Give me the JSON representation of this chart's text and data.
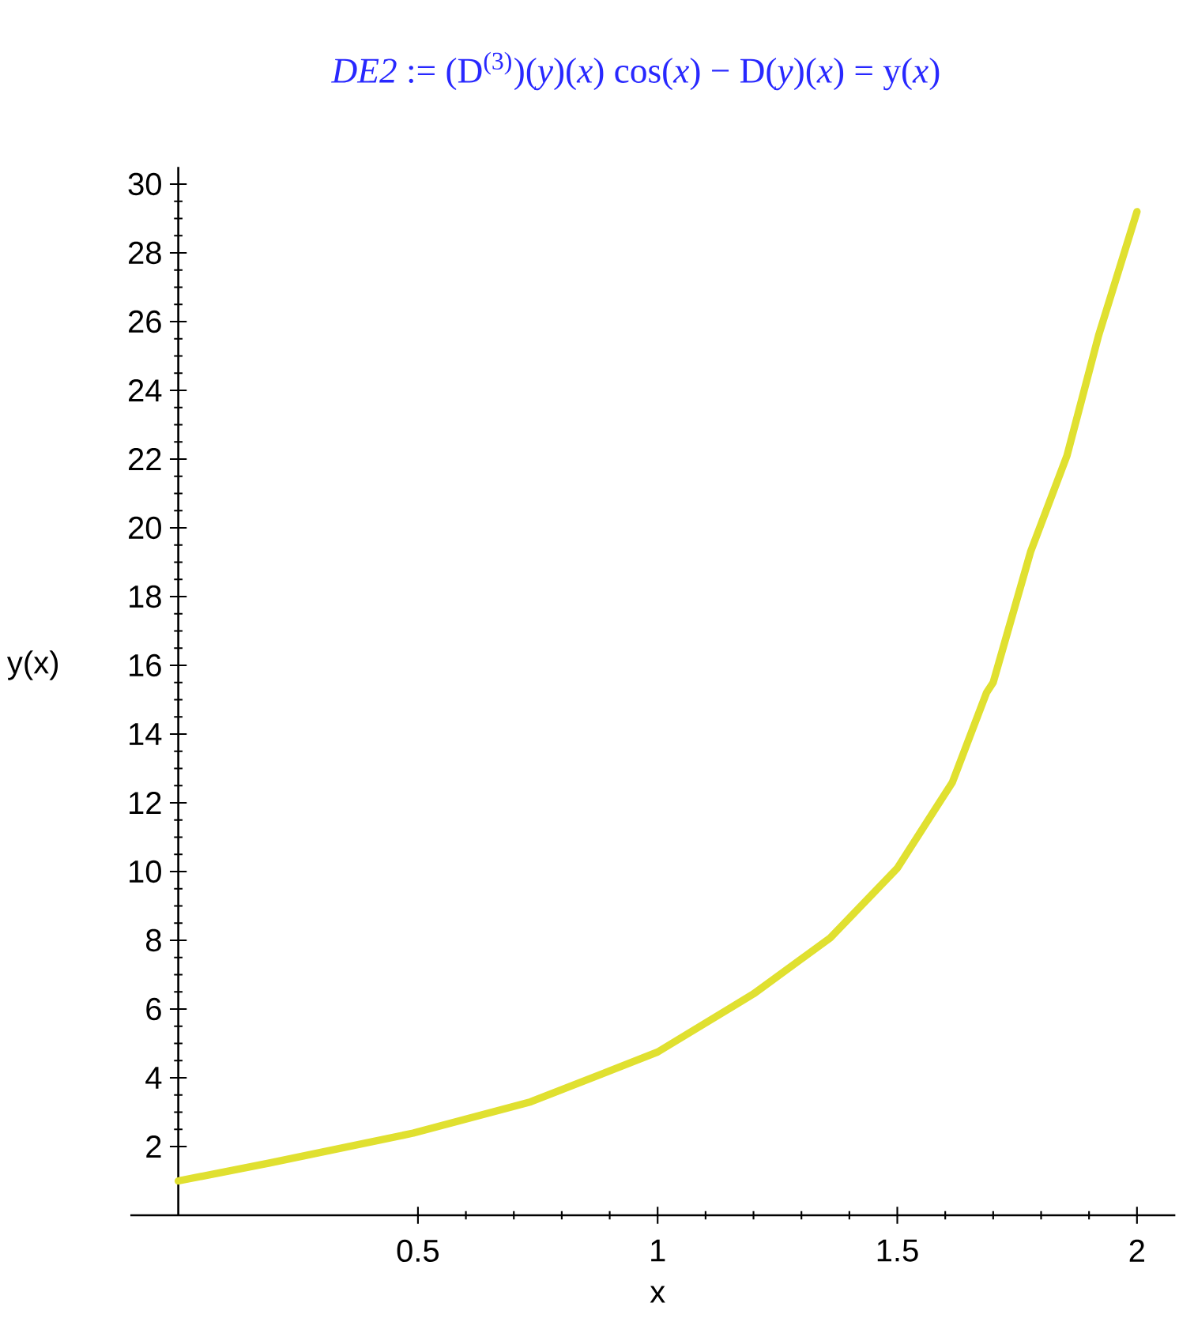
{
  "chart_data": {
    "type": "line",
    "title": "*DE2* := (D$^{(3)}$)(*y*)(*x*) cos(*x*) − D(*y*)(*x*) = y(*x*)",
    "xlabel": "x",
    "ylabel": "y(x)",
    "x": [
      0,
      0.19,
      0.49,
      0.735,
      1.0,
      1.2,
      1.36,
      1.5,
      1.615,
      1.686,
      1.7,
      1.778,
      1.854,
      1.92,
      2.0
    ],
    "values": [
      1.0,
      1.52,
      2.39,
      3.3,
      4.75,
      6.44,
      8.07,
      10.1,
      12.6,
      15.2,
      15.5,
      19.3,
      22.1,
      25.6,
      29.2
    ],
    "color": "#e0e030",
    "xlim": [
      -0.1,
      2.08
    ],
    "ylim": [
      0,
      30.5
    ],
    "xticks": [
      0.5,
      1,
      1.5,
      2
    ],
    "yticks": [
      2,
      4,
      6,
      8,
      10,
      12,
      14,
      16,
      18,
      20,
      22,
      24,
      26,
      28,
      30
    ]
  }
}
